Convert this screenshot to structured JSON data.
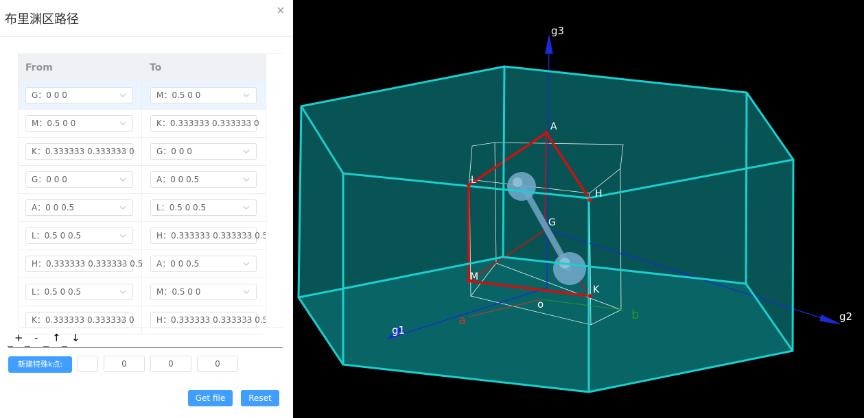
{
  "dialog": {
    "title": "布里渊区路径",
    "close_glyph": "×"
  },
  "table": {
    "headers": {
      "from": "From",
      "to": "To"
    },
    "rows": [
      {
        "from": "G：0 0 0",
        "to": "M：0.5 0 0"
      },
      {
        "from": "M：0.5 0 0",
        "to": "K：0.333333 0.333333 0"
      },
      {
        "from": "K：0.333333 0.333333 0",
        "to": "G：0 0 0"
      },
      {
        "from": "G：0 0 0",
        "to": "A：0 0 0.5"
      },
      {
        "from": "A：0 0 0.5",
        "to": "L：0.5 0 0.5"
      },
      {
        "from": "L：0.5 0 0.5",
        "to": "H：0.333333 0.333333 0.5"
      },
      {
        "from": "H：0.333333 0.333333 0.5",
        "to": "A：0 0 0.5"
      },
      {
        "from": "L：0.5 0 0.5",
        "to": "M：0.5 0 0"
      },
      {
        "from": "K：0.333333 0.333333 0",
        "to": "H：0.333333 0.333333 0.5"
      }
    ],
    "active_row": 0
  },
  "toolbar": {
    "add": "+",
    "remove": "-",
    "up": "↑",
    "down": "↓"
  },
  "new_kpoint": {
    "button_label": "新建特殊k点:",
    "name_value": "",
    "coords": [
      "0",
      "0",
      "0"
    ]
  },
  "actions": {
    "get_file": "Get file",
    "reset": "Reset"
  },
  "viewer": {
    "axis_labels": {
      "g1": "g1",
      "g2": "g2",
      "g3": "g3"
    },
    "cell_axis_labels": {
      "a": "a",
      "b": "b",
      "origin": "o"
    },
    "kpoint_labels": [
      "A",
      "L",
      "H",
      "G",
      "M",
      "K"
    ],
    "colors": {
      "background": "#000000",
      "zone_fill": "#0a6a6a",
      "zone_edge": "#19cfcf",
      "path": "#cc1111",
      "recip_axis": "#1a2bd6",
      "axis_a": "#c0392b",
      "axis_b": "#1f9a1f",
      "atom": "#6fa6c6"
    }
  }
}
